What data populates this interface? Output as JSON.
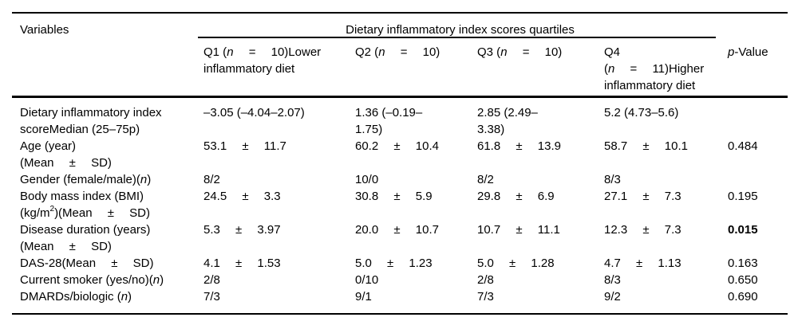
{
  "colors": {
    "background": "#ffffff",
    "text": "#000000",
    "rule": "#000000"
  },
  "table": {
    "header": {
      "variables": "Variables",
      "spanner": "Dietary inflammatory index scores quartiles",
      "columns": [
        {
          "segments": [
            {
              "t": "Q1 ("
            },
            {
              "t": "n",
              "i": true
            },
            {
              "t": "  =  10)Lower\ninflammatory diet"
            }
          ]
        },
        {
          "segments": [
            {
              "t": "Q2 ("
            },
            {
              "t": "n",
              "i": true
            },
            {
              "t": "  =  10)"
            }
          ]
        },
        {
          "segments": [
            {
              "t": "Q3 ("
            },
            {
              "t": "n",
              "i": true
            },
            {
              "t": "  =  10)"
            }
          ]
        },
        {
          "segments": [
            {
              "t": "Q4\n("
            },
            {
              "t": "n",
              "i": true
            },
            {
              "t": "  =  11)Higher\ninflammatory diet"
            }
          ]
        }
      ],
      "p_value": {
        "segments": [
          {
            "t": "p",
            "i": true
          },
          {
            "t": "-Value"
          }
        ]
      }
    },
    "rows": [
      {
        "label": {
          "segments": [
            {
              "t": "Dietary inflammatory index\nscoreMedian (25–75p)"
            }
          ]
        },
        "cells": [
          "–3.05 (–4.04–2.07)",
          "1.36 (–0.19–\n1.75)",
          "2.85 (2.49–\n3.38)",
          "5.2 (4.73–5.6)"
        ],
        "p": ""
      },
      {
        "label": {
          "segments": [
            {
              "t": "Age (year)\n(Mean  ±  SD)"
            }
          ]
        },
        "cells": [
          "53.1  ±  11.7",
          "60.2  ±  10.4",
          "61.8  ±  13.9",
          "58.7  ±  10.1"
        ],
        "p": "0.484"
      },
      {
        "label": {
          "segments": [
            {
              "t": "Gender (female/male)("
            },
            {
              "t": "n",
              "i": true
            },
            {
              "t": ")"
            }
          ]
        },
        "cells": [
          "8/2",
          "10/0",
          "8/2",
          "8/3"
        ],
        "p": ""
      },
      {
        "label": {
          "segments": [
            {
              "t": "Body mass index (BMI)\n(kg/m"
            },
            {
              "t": "2",
              "sup": true
            },
            {
              "t": ")(Mean  ±  SD)"
            }
          ]
        },
        "cells": [
          "24.5  ±  3.3",
          "30.8  ±  5.9",
          "29.8  ±  6.9",
          "27.1  ±  7.3"
        ],
        "p": "0.195"
      },
      {
        "label": {
          "segments": [
            {
              "t": "Disease duration (years)\n(Mean  ±  SD)"
            }
          ]
        },
        "cells": [
          "5.3  ±  3.97",
          "20.0  ±  10.7",
          "10.7  ±  11.1",
          "12.3  ±  7.3"
        ],
        "p": "0.015",
        "p_bold": true
      },
      {
        "label": {
          "segments": [
            {
              "t": "DAS-28(Mean  ±  SD)"
            }
          ]
        },
        "cells": [
          "4.1  ±  1.53",
          "5.0  ±  1.23",
          "5.0  ±  1.28",
          "4.7  ±  1.13"
        ],
        "p": "0.163"
      },
      {
        "label": {
          "segments": [
            {
              "t": "Current smoker (yes/no)("
            },
            {
              "t": "n",
              "i": true
            },
            {
              "t": ")"
            }
          ]
        },
        "cells": [
          "2/8",
          "0/10",
          "2/8",
          "8/3"
        ],
        "p": "0.650"
      },
      {
        "label": {
          "segments": [
            {
              "t": "DMARDs/biologic ("
            },
            {
              "t": "n",
              "i": true
            },
            {
              "t": ")"
            }
          ]
        },
        "cells": [
          "7/3",
          "9/1",
          "7/3",
          "9/2"
        ],
        "p": "0.690"
      }
    ]
  }
}
